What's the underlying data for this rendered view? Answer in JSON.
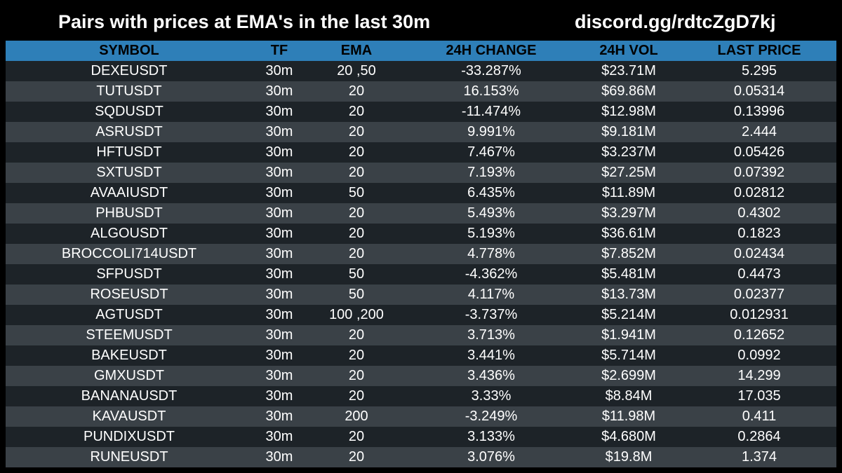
{
  "header": {
    "title": "Pairs with prices at EMA's in the last 30m",
    "discord": "discord.gg/rdtcZgD7kj"
  },
  "table": {
    "columns": [
      "SYMBOL",
      "TF",
      "EMA",
      "24H CHANGE",
      "24H VOL",
      "LAST PRICE"
    ],
    "rows": [
      [
        "DEXEUSDT",
        "30m",
        "20 ,50",
        "-33.287%",
        "$23.71M",
        "5.295"
      ],
      [
        "TUTUSDT",
        "30m",
        "20",
        "16.153%",
        "$69.86M",
        "0.05314"
      ],
      [
        "SQDUSDT",
        "30m",
        "20",
        "-11.474%",
        "$12.98M",
        "0.13996"
      ],
      [
        "ASRUSDT",
        "30m",
        "20",
        "9.991%",
        "$9.181M",
        "2.444"
      ],
      [
        "HFTUSDT",
        "30m",
        "20",
        "7.467%",
        "$3.237M",
        "0.05426"
      ],
      [
        "SXTUSDT",
        "30m",
        "20",
        "7.193%",
        "$27.25M",
        "0.07392"
      ],
      [
        "AVAAIUSDT",
        "30m",
        "50",
        "6.435%",
        "$11.89M",
        "0.02812"
      ],
      [
        "PHBUSDT",
        "30m",
        "20",
        "5.493%",
        "$3.297M",
        "0.4302"
      ],
      [
        "ALGOUSDT",
        "30m",
        "20",
        "5.193%",
        "$36.61M",
        "0.1823"
      ],
      [
        "BROCCOLI714USDT",
        "30m",
        "20",
        "4.778%",
        "$7.852M",
        "0.02434"
      ],
      [
        "SFPUSDT",
        "30m",
        "50",
        "-4.362%",
        "$5.481M",
        "0.4473"
      ],
      [
        "ROSEUSDT",
        "30m",
        "50",
        "4.117%",
        "$13.73M",
        "0.02377"
      ],
      [
        "AGTUSDT",
        "30m",
        "100 ,200",
        "-3.737%",
        "$5.214M",
        "0.012931"
      ],
      [
        "STEEMUSDT",
        "30m",
        "20",
        "3.713%",
        "$1.941M",
        "0.12652"
      ],
      [
        "BAKEUSDT",
        "30m",
        "20",
        "3.441%",
        "$5.714M",
        "0.0992"
      ],
      [
        "GMXUSDT",
        "30m",
        "20",
        "3.436%",
        "$2.699M",
        "14.299"
      ],
      [
        "BANANAUSDT",
        "30m",
        "20",
        "3.33%",
        "$8.84M",
        "17.035"
      ],
      [
        "KAVAUSDT",
        "30m",
        "200",
        "-3.249%",
        "$11.98M",
        "0.411"
      ],
      [
        "PUNDIXUSDT",
        "30m",
        "20",
        "3.133%",
        "$4.680M",
        "0.2864"
      ],
      [
        "RUNEUSDT",
        "30m",
        "20",
        "3.076%",
        "$19.8M",
        "1.374"
      ]
    ]
  },
  "colors": {
    "background": "#000000",
    "header_row": "#2e7fb8",
    "row_dark": "#1d2328",
    "row_light": "#3a4147",
    "text": "#ffffff"
  }
}
